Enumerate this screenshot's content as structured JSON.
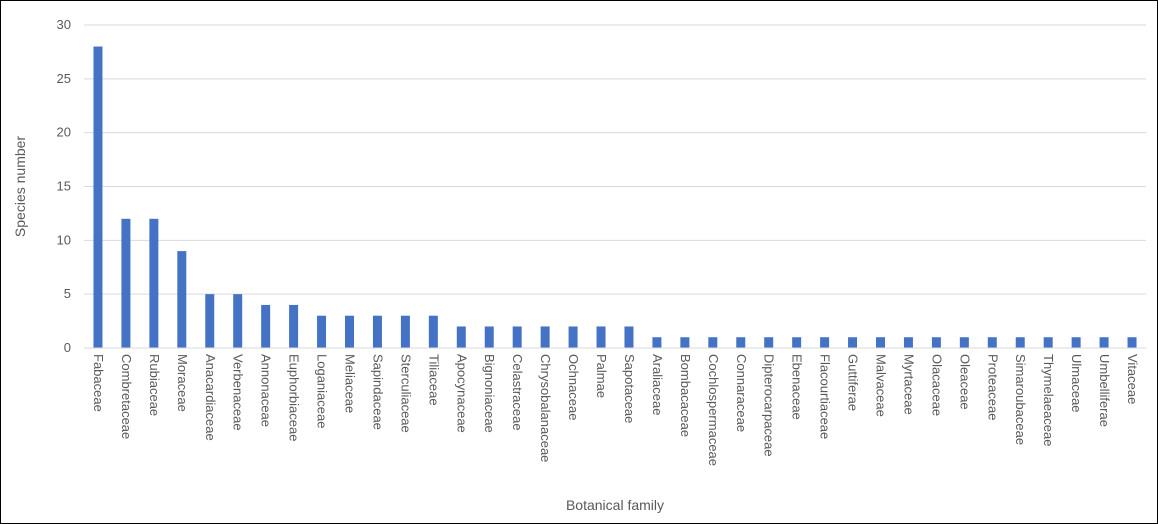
{
  "chart_data": {
    "type": "bar",
    "xlabel": "Botanical family",
    "ylabel": "Species number",
    "ylim": [
      0,
      30
    ],
    "yticks": [
      0,
      5,
      10,
      15,
      20,
      25,
      30
    ],
    "grid": true,
    "legend": "none",
    "bar_color": "#4472C4",
    "categories": [
      "Fabaceae",
      "Combretaceae",
      "Rubiaceae",
      "Moraceae",
      "Anacardiaceae",
      "Verbenaceae",
      "Annonaceae",
      "Euphorbiaceae",
      "Loganiaceae",
      "Meliaceae",
      "Sapindaceae",
      "Sterculiaceae",
      "Tiliaceae",
      "Apocynaceae",
      "Bignoniaceae",
      "Celastraceae",
      "Chrysobalanaceae",
      "Ochnaceae",
      "Palmae",
      "Sapotaceae",
      "Araliaceae",
      "Bombacaceae",
      "Cochlospermaceae",
      "Connaraceae",
      "Dipterocarpaceae",
      "Ebenaceae",
      "Flacourtiaceae",
      "Guttiferae",
      "Malvaceae",
      "Myrtaceae",
      "Olacaceae",
      "Oleaceae",
      "Proteaceae",
      "Simaroubaceae",
      "Thymelaeaceae",
      "Ulmaceae",
      "Umbelliferae",
      "Vitaceae"
    ],
    "values": [
      28,
      12,
      12,
      9,
      5,
      5,
      4,
      4,
      3,
      3,
      3,
      3,
      3,
      2,
      2,
      2,
      2,
      2,
      2,
      2,
      1,
      1,
      1,
      1,
      1,
      1,
      1,
      1,
      1,
      1,
      1,
      1,
      1,
      1,
      1,
      1,
      1,
      1
    ]
  }
}
